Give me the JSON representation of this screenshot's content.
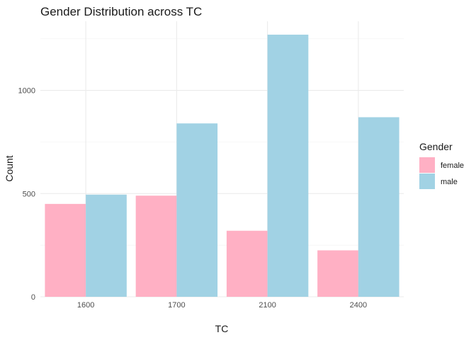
{
  "chart_data": {
    "type": "bar",
    "title": "Gender Distribution across TC",
    "xlabel": "TC",
    "ylabel": "Count",
    "categories": [
      "1600",
      "1700",
      "2100",
      "2400"
    ],
    "series": [
      {
        "name": "female",
        "color": "#FFB0C4",
        "values": [
          450,
          490,
          320,
          225
        ]
      },
      {
        "name": "male",
        "color": "#A1D2E4",
        "values": [
          495,
          840,
          1270,
          870
        ]
      }
    ],
    "ylim": [
      0,
      1300
    ],
    "yticks": [
      0,
      500,
      1000
    ],
    "grid": true,
    "legend": {
      "title": "Gender",
      "position": "right"
    }
  }
}
